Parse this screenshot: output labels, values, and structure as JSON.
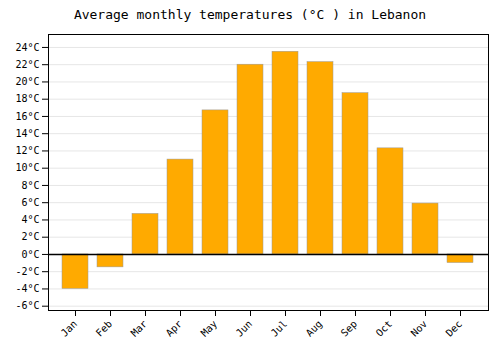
{
  "chart_data": {
    "type": "bar",
    "title": "Average monthly temperatures (°C ) in Lebanon",
    "categories": [
      "Jan",
      "Feb",
      "Mar",
      "Apr",
      "May",
      "Jun",
      "Jul",
      "Aug",
      "Sep",
      "Oct",
      "Nov",
      "Dec"
    ],
    "values": [
      -4.0,
      -1.5,
      4.7,
      11.0,
      16.7,
      22.0,
      23.5,
      22.3,
      18.7,
      12.3,
      5.9,
      -1.0
    ],
    "color": "#FFAA00",
    "ylim": [
      -6.5,
      25.5
    ],
    "yticks": [
      {
        "value": -6,
        "label": "-6°C"
      },
      {
        "value": -4,
        "label": "-4°C"
      },
      {
        "value": -2,
        "label": "-2°C"
      },
      {
        "value": 0,
        "label": "0°C"
      },
      {
        "value": 2,
        "label": "2°C"
      },
      {
        "value": 4,
        "label": "4°C"
      },
      {
        "value": 6,
        "label": "6°C"
      },
      {
        "value": 8,
        "label": "8°C"
      },
      {
        "value": 10,
        "label": "10°C"
      },
      {
        "value": 12,
        "label": "12°C"
      },
      {
        "value": 14,
        "label": "14°C"
      },
      {
        "value": 16,
        "label": "16°C"
      },
      {
        "value": 18,
        "label": "18°C"
      },
      {
        "value": 20,
        "label": "20°C"
      },
      {
        "value": 22,
        "label": "22°C"
      },
      {
        "value": 24,
        "label": "24°C"
      }
    ],
    "grid": true
  }
}
